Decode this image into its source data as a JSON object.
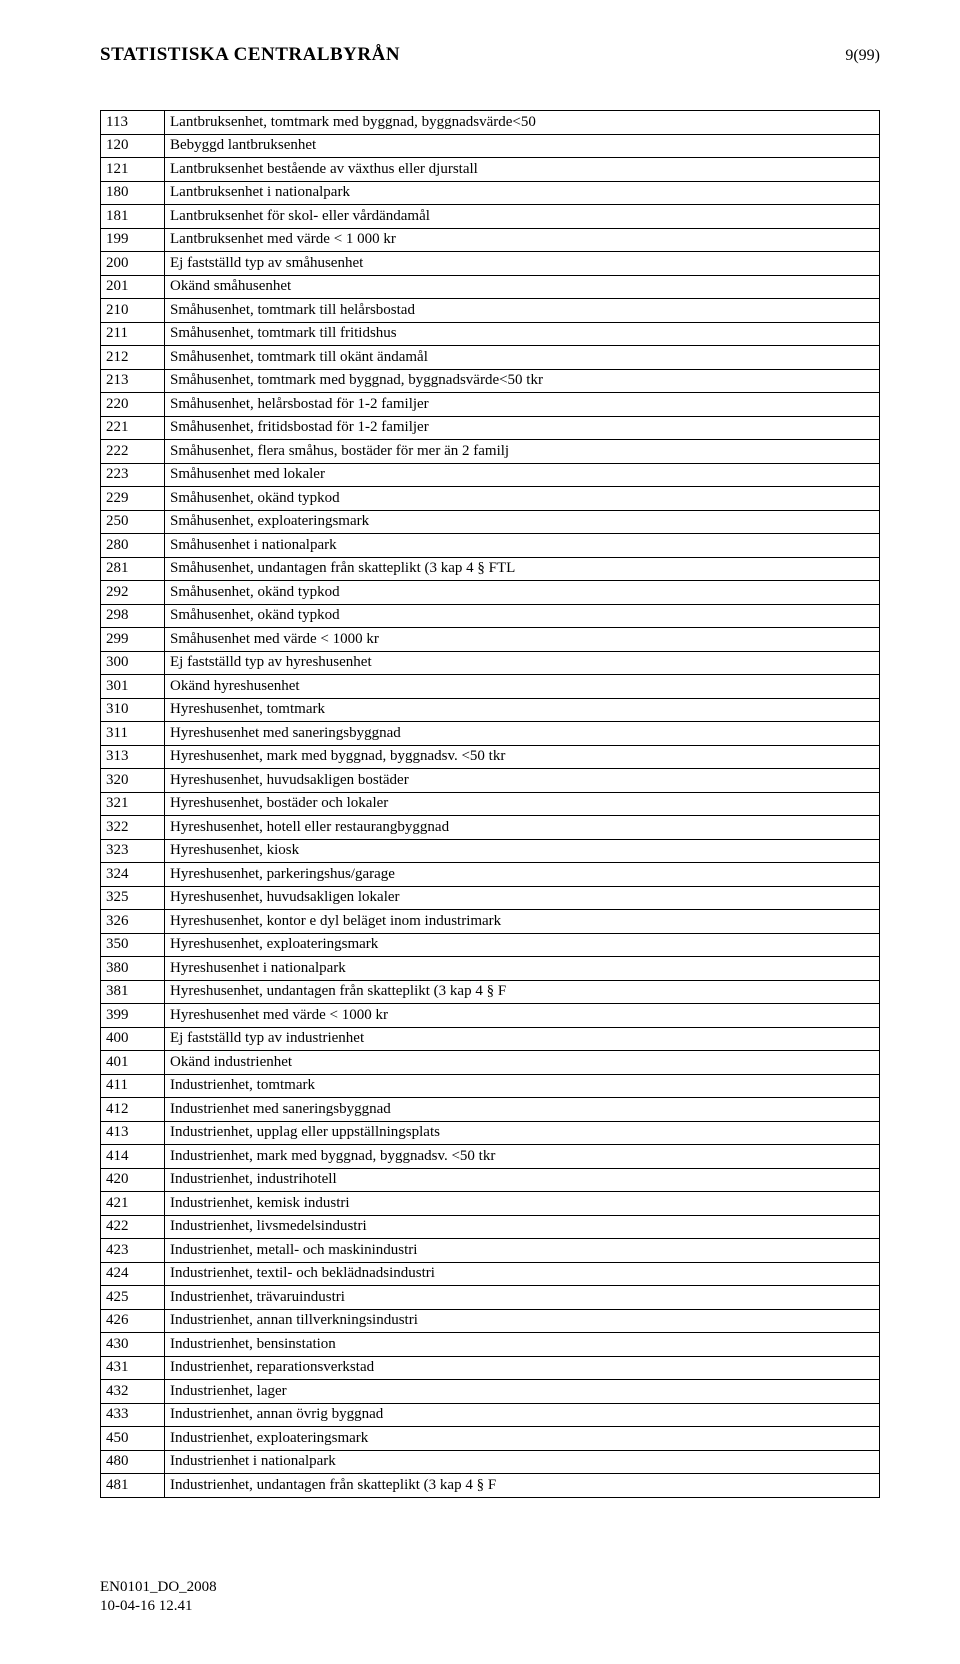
{
  "header": {
    "title": "STATISTISKA CENTRALBYRÅN",
    "page_label": "9(99)"
  },
  "table": {
    "rows": [
      [
        "113",
        "Lantbruksenhet, tomtmark med byggnad, byggnadsvärde<50"
      ],
      [
        "120",
        "Bebyggd lantbruksenhet"
      ],
      [
        "121",
        "Lantbruksenhet bestående av växthus eller djurstall"
      ],
      [
        "180",
        "Lantbruksenhet i nationalpark"
      ],
      [
        "181",
        "Lantbruksenhet för skol- eller vårdändamål"
      ],
      [
        "199",
        "Lantbruksenhet med värde < 1 000 kr"
      ],
      [
        "200",
        "Ej fastställd typ av småhusenhet"
      ],
      [
        "201",
        "Okänd småhusenhet"
      ],
      [
        "210",
        "Småhusenhet, tomtmark till helårsbostad"
      ],
      [
        "211",
        "Småhusenhet, tomtmark till fritidshus"
      ],
      [
        "212",
        "Småhusenhet, tomtmark till okänt ändamål"
      ],
      [
        "213",
        "Småhusenhet, tomtmark med byggnad, byggnadsvärde<50 tkr"
      ],
      [
        "220",
        "Småhusenhet, helårsbostad för 1-2 familjer"
      ],
      [
        "221",
        "Småhusenhet, fritidsbostad för 1-2 familjer"
      ],
      [
        "222",
        "Småhusenhet, flera småhus, bostäder för mer än 2 familj"
      ],
      [
        "223",
        "Småhusenhet med lokaler"
      ],
      [
        "229",
        "Småhusenhet, okänd typkod"
      ],
      [
        "250",
        "Småhusenhet, exploateringsmark"
      ],
      [
        "280",
        "Småhusenhet i nationalpark"
      ],
      [
        "281",
        "Småhusenhet, undantagen från skatteplikt (3 kap 4 § FTL"
      ],
      [
        "292",
        "Småhusenhet, okänd typkod"
      ],
      [
        "298",
        "Småhusenhet, okänd typkod"
      ],
      [
        "299",
        "Småhusenhet med värde < 1000 kr"
      ],
      [
        "300",
        "Ej fastställd typ av hyreshusenhet"
      ],
      [
        "301",
        "Okänd hyreshusenhet"
      ],
      [
        "310",
        "Hyreshusenhet, tomtmark"
      ],
      [
        "311",
        "Hyreshusenhet med saneringsbyggnad"
      ],
      [
        "313",
        "Hyreshusenhet, mark med byggnad, byggnadsv. <50 tkr"
      ],
      [
        "320",
        "Hyreshusenhet, huvudsakligen bostäder"
      ],
      [
        "321",
        "Hyreshusenhet, bostäder och lokaler"
      ],
      [
        "322",
        "Hyreshusenhet, hotell eller restaurangbyggnad"
      ],
      [
        "323",
        "Hyreshusenhet, kiosk"
      ],
      [
        "324",
        "Hyreshusenhet, parkeringshus/garage"
      ],
      [
        "325",
        "Hyreshusenhet, huvudsakligen lokaler"
      ],
      [
        "326",
        "Hyreshusenhet, kontor e dyl beläget inom industrimark"
      ],
      [
        "350",
        "Hyreshusenhet, exploateringsmark"
      ],
      [
        "380",
        "Hyreshusenhet i nationalpark"
      ],
      [
        "381",
        "Hyreshusenhet, undantagen från skatteplikt (3 kap 4 § F"
      ],
      [
        "399",
        "Hyreshusenhet med värde < 1000 kr"
      ],
      [
        "400",
        "Ej fastställd typ av industrienhet"
      ],
      [
        "401",
        "Okänd industrienhet"
      ],
      [
        "411",
        "Industrienhet, tomtmark"
      ],
      [
        "412",
        "Industrienhet med saneringsbyggnad"
      ],
      [
        "413",
        "Industrienhet, upplag eller uppställningsplats"
      ],
      [
        "414",
        "Industrienhet, mark med byggnad, byggnadsv. <50 tkr"
      ],
      [
        "420",
        "Industrienhet, industrihotell"
      ],
      [
        "421",
        "Industrienhet, kemisk industri"
      ],
      [
        "422",
        "Industrienhet, livsmedelsindustri"
      ],
      [
        "423",
        "Industrienhet, metall- och maskinindustri"
      ],
      [
        "424",
        "Industrienhet, textil- och beklädnadsindustri"
      ],
      [
        "425",
        "Industrienhet, trävaruindustri"
      ],
      [
        "426",
        "Industrienhet, annan tillverkningsindustri"
      ],
      [
        "430",
        "Industrienhet, bensinstation"
      ],
      [
        "431",
        "Industrienhet, reparationsverkstad"
      ],
      [
        "432",
        "Industrienhet, lager"
      ],
      [
        "433",
        "Industrienhet, annan övrig byggnad"
      ],
      [
        "450",
        "Industrienhet, exploateringsmark"
      ],
      [
        "480",
        "Industrienhet i nationalpark"
      ],
      [
        "481",
        "Industrienhet, undantagen från skatteplikt (3 kap 4 § F"
      ]
    ]
  },
  "footer": {
    "line1": "EN0101_DO_2008",
    "line2": "10-04-16 12.41"
  }
}
